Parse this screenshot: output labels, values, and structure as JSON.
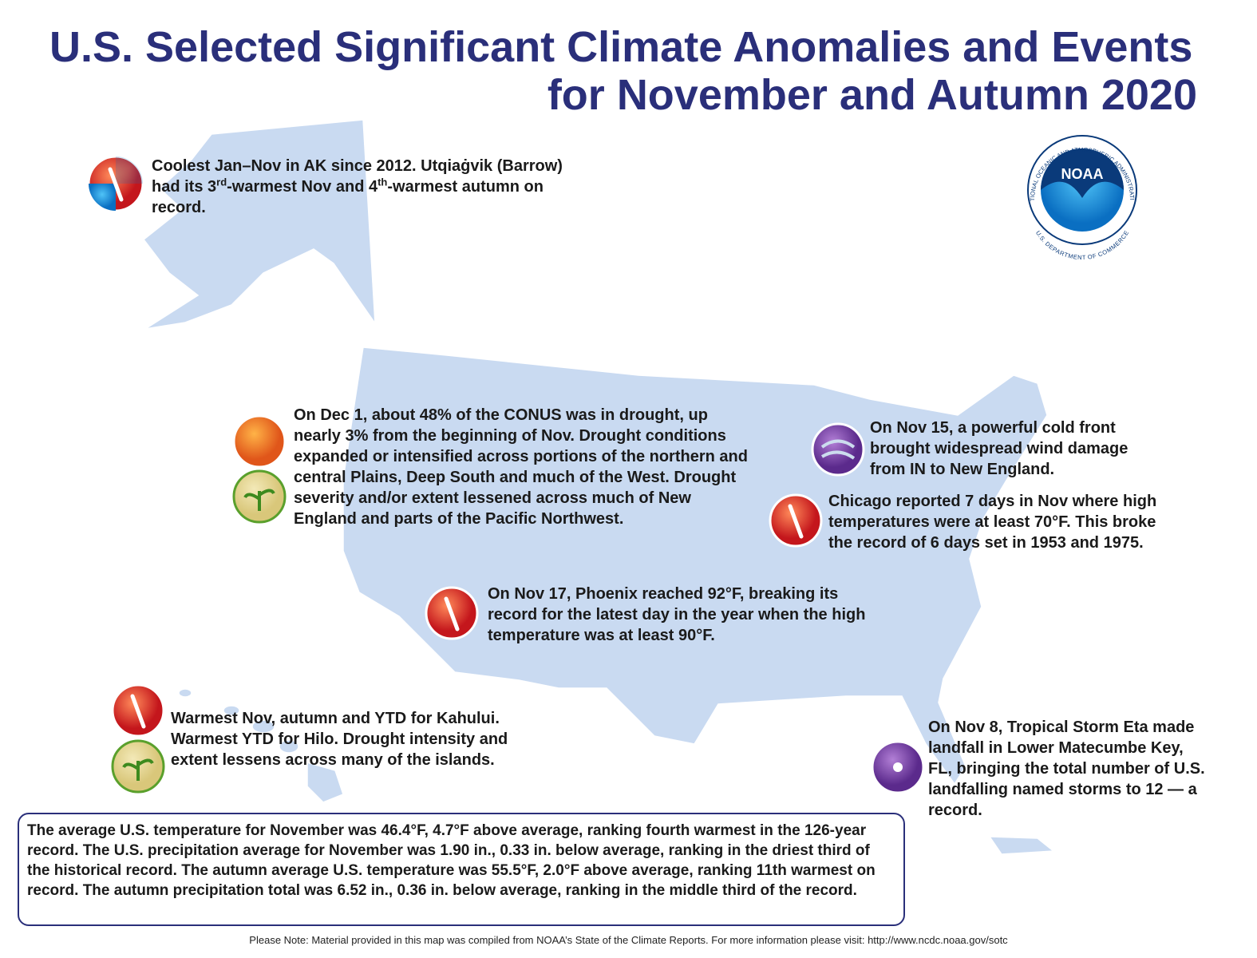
{
  "title": [
    "U.S. Selected Significant Climate Anomalies and Events",
    "for November and Autumn 2020"
  ],
  "logo": {
    "name": "NOAA",
    "ring": "NATIONAL OCEANIC AND ATMOSPHERIC ADMINISTRATION",
    "bottom": "U.S. DEPARTMENT OF COMMERCE"
  },
  "events": [
    {
      "text": [
        {
          "text": "Coolest Jan–Nov in AK since 2012. Utqiaġvik (Barrow) had its 3",
          "style": "normal"
        },
        {
          "text": "rd",
          "style": "superscript"
        },
        {
          "text": "-warmest Nov and 4",
          "style": "normal"
        },
        {
          "text": "th",
          "style": "superscript"
        },
        {
          "text": "-warmest autumn on record.",
          "style": "normal"
        }
      ]
    },
    {
      "text": [
        {
          "text": "On Dec 1, about 48% of the CONUS was in drought, up nearly 3% from the beginning of Nov. Drought conditions expanded or intensified across portions of the northern and central Plains, Deep South and much of the West. Drought severity and/or extent lessened across much of New England and parts of the Pacific Northwest.",
          "style": "normal"
        }
      ]
    },
    {
      "text": [
        {
          "text": "On Nov 15, a powerful cold front brought widespread wind damage from IN to New England.",
          "style": "normal"
        }
      ]
    },
    {
      "text": [
        {
          "text": "Chicago reported 7 days in Nov where high temperatures were at least 70°F. This broke the record of 6 days set in 1953 and 1975.",
          "style": "normal"
        }
      ]
    },
    {
      "text": [
        {
          "text": "On Nov 17, Phoenix reached 92°F, breaking its record for the latest day in the year when the high temperature was at least 90°F.",
          "style": "normal"
        }
      ]
    },
    {
      "text": [
        {
          "text": "Warmest Nov, autumn and YTD for Kahului. Warmest YTD for Hilo. Drought intensity and extent lessens across many of the islands.",
          "style": "normal"
        }
      ]
    },
    {
      "text": [
        {
          "text": "On Nov 8, Tropical Storm Eta made landfall in Lower Matecumbe Key, FL, bringing the total number of U.S. landfalling named storms to 12 — a record.",
          "style": "normal"
        }
      ]
    }
  ],
  "summary": "The average U.S. temperature for November was 46.4°F, 4.7°F above average, ranking fourth warmest in the 126-year record. The U.S. precipitation average for November was 1.90 in., 0.33 in. below average, ranking in the driest third of the historical record. The autumn average U.S. temperature was 55.5°F, 2.0°F above average, ranking 11th warmest on record. The autumn precipitation total was 6.52 in., 0.36 in. below average, ranking in the middle third of the record.",
  "note": "Please Note: Material provided in this map was compiled from NOAA’s State of the Climate Reports. For more information please visit: http://www.ncdc.noaa.gov/sotc"
}
